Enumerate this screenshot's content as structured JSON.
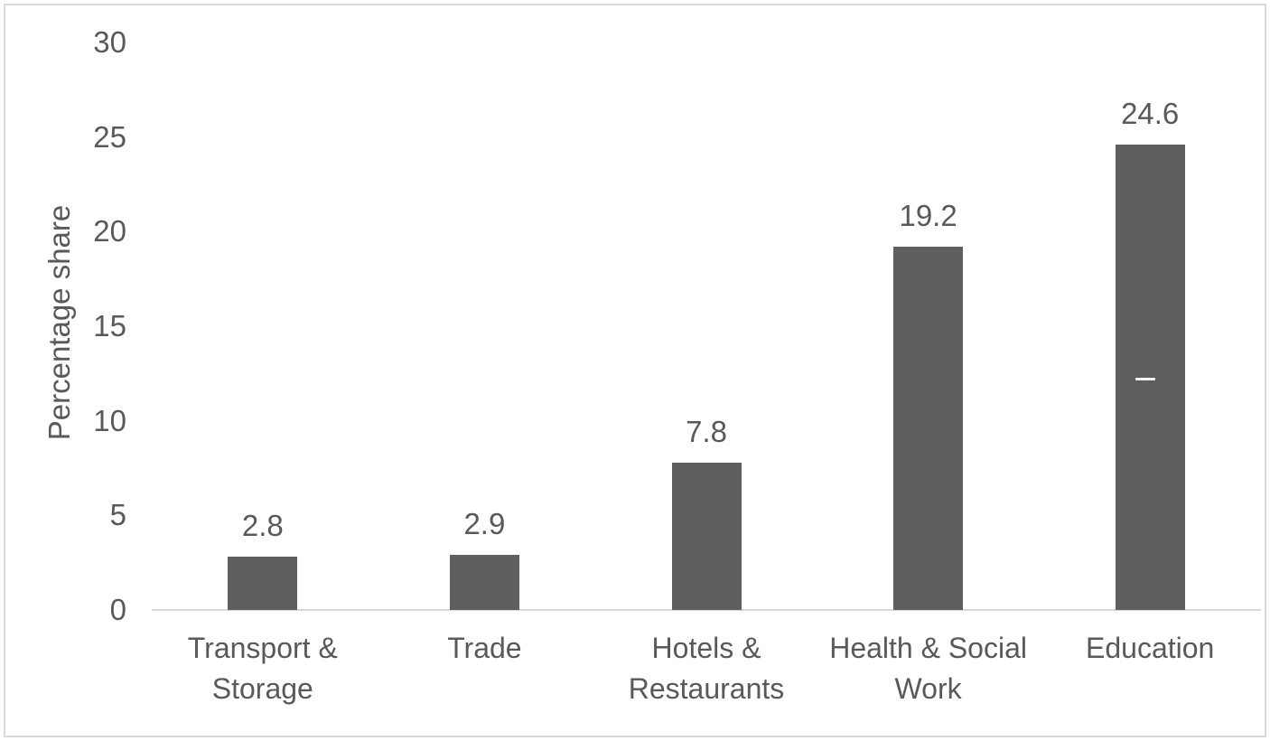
{
  "chart_data": {
    "type": "bar",
    "categories": [
      "Transport & Storage",
      "Trade",
      "Hotels & Restaurants",
      "Health & Social Work",
      "Education"
    ],
    "values": [
      2.8,
      2.9,
      7.8,
      19.2,
      24.6
    ],
    "data_labels": [
      "2.8",
      "2.9",
      "7.8",
      "19.2",
      "24.6"
    ],
    "title": "",
    "xlabel": "",
    "ylabel": "Percentage share",
    "ylim": [
      0,
      30
    ],
    "yticks": [
      "0",
      "5",
      "10",
      "15",
      "20",
      "25",
      "30"
    ],
    "grid": false,
    "legend": "none",
    "bar_color": "#5f5f5f",
    "text_color": "#595959",
    "axis_line_color": "#d9d9d9",
    "frame_border_color": "#d9d9d9",
    "annotations": [
      {
        "type": "white-dash",
        "category_index": 4,
        "value": 12.2,
        "color": "#f2f2f2"
      }
    ]
  }
}
